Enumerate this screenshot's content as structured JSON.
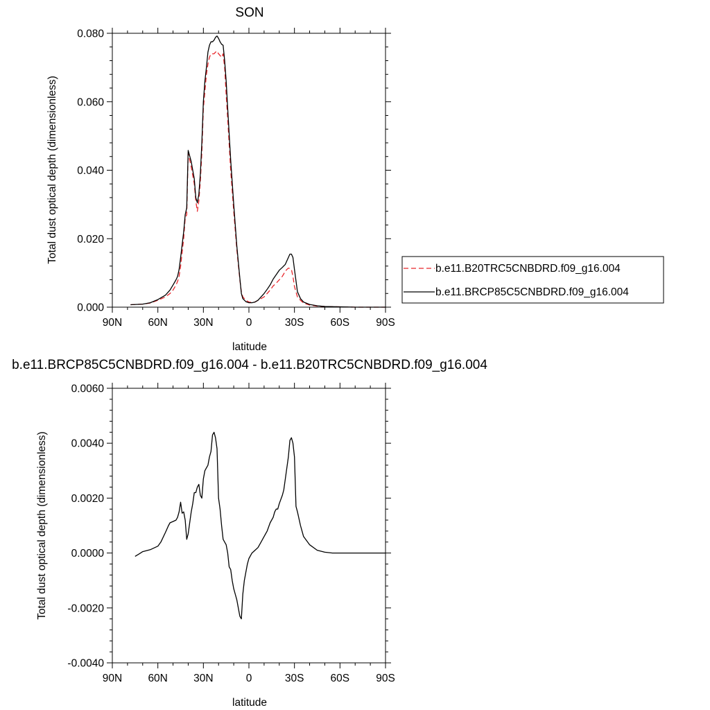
{
  "chart_data": [
    {
      "type": "line",
      "title": "SON",
      "xlabel": "latitude",
      "ylabel": "Total dust optical depth (dimensionless)",
      "xlim": [
        90,
        -90
      ],
      "ylim": [
        0,
        0.08
      ],
      "x_ticks": [
        90,
        60,
        30,
        0,
        -30,
        -60,
        -90
      ],
      "x_tick_labels": [
        "90N",
        "60N",
        "30N",
        "0",
        "30S",
        "60S",
        "90S"
      ],
      "y_ticks": [
        0,
        0.02,
        0.04,
        0.06,
        0.08
      ],
      "y_tick_labels": [
        "0.000",
        "0.020",
        "0.040",
        "0.060",
        "0.080"
      ],
      "grid": false,
      "legend_position": "outside-right",
      "series": [
        {
          "name": "b.e11.B20TRC5CNBDRD.f09_g16.004",
          "color": "#e8262b",
          "dash": "dashed",
          "x": [
            78,
            70,
            65,
            60,
            55,
            52,
            50,
            48,
            47,
            46,
            45,
            43,
            42,
            41,
            40,
            38,
            36,
            35,
            34,
            33,
            32,
            31,
            30,
            29,
            28,
            27,
            26,
            25,
            24,
            23,
            22,
            21,
            20,
            19,
            18,
            17,
            16,
            15,
            14,
            12,
            10,
            8,
            6,
            5,
            4,
            2,
            0,
            -2,
            -4,
            -6,
            -8,
            -10,
            -12,
            -14,
            -16,
            -18,
            -20,
            -22,
            -24,
            -25,
            -26,
            -27,
            -28,
            -29,
            -30,
            -32,
            -34,
            -36,
            -40,
            -45,
            -50,
            -60,
            -70,
            -80,
            -90
          ],
          "values": [
            0.0007,
            0.0009,
            0.0012,
            0.002,
            0.003,
            0.004,
            0.005,
            0.0065,
            0.0075,
            0.009,
            0.012,
            0.02,
            0.026,
            0.027,
            0.045,
            0.041,
            0.036,
            0.031,
            0.028,
            0.031,
            0.037,
            0.045,
            0.058,
            0.063,
            0.068,
            0.071,
            0.073,
            0.074,
            0.074,
            0.074,
            0.0745,
            0.0748,
            0.074,
            0.0735,
            0.073,
            0.074,
            0.07,
            0.062,
            0.055,
            0.04,
            0.028,
            0.017,
            0.008,
            0.0045,
            0.003,
            0.002,
            0.0015,
            0.0014,
            0.0015,
            0.002,
            0.0025,
            0.003,
            0.004,
            0.005,
            0.0062,
            0.007,
            0.008,
            0.009,
            0.0105,
            0.011,
            0.0114,
            0.0113,
            0.011,
            0.009,
            0.006,
            0.003,
            0.002,
            0.0012,
            0.0006,
            0.0003,
            0.0002,
            0.0001,
            0.0,
            0.0,
            0.0
          ]
        },
        {
          "name": "b.e11.BRCP85C5CNBDRD.f09_g16.004",
          "color": "#000000",
          "dash": "solid",
          "x": [
            78,
            70,
            65,
            60,
            55,
            52,
            50,
            48,
            47,
            46,
            45,
            43,
            42,
            41,
            40,
            38,
            36,
            35,
            34,
            33,
            32,
            31,
            30,
            29,
            28,
            27,
            26,
            25,
            24,
            23,
            22,
            21,
            20,
            19,
            18,
            17,
            16,
            15,
            14,
            12,
            10,
            8,
            6,
            5,
            4,
            2,
            0,
            -2,
            -4,
            -6,
            -8,
            -10,
            -12,
            -14,
            -16,
            -18,
            -20,
            -22,
            -24,
            -25,
            -26,
            -27,
            -28,
            -29,
            -30,
            -32,
            -34,
            -36,
            -40,
            -45,
            -50,
            -60,
            -70,
            -80,
            -90
          ],
          "values": [
            0.0007,
            0.0009,
            0.0013,
            0.0022,
            0.0035,
            0.005,
            0.0065,
            0.008,
            0.009,
            0.011,
            0.0145,
            0.022,
            0.027,
            0.029,
            0.0458,
            0.0425,
            0.0375,
            0.032,
            0.0305,
            0.033,
            0.039,
            0.048,
            0.06,
            0.066,
            0.07,
            0.0745,
            0.0765,
            0.0775,
            0.0775,
            0.078,
            0.0788,
            0.0792,
            0.0785,
            0.0775,
            0.0768,
            0.0765,
            0.072,
            0.066,
            0.058,
            0.043,
            0.03,
            0.018,
            0.0085,
            0.004,
            0.0025,
            0.0016,
            0.0013,
            0.0013,
            0.0015,
            0.002,
            0.003,
            0.004,
            0.0052,
            0.0065,
            0.0082,
            0.0095,
            0.0108,
            0.0116,
            0.0125,
            0.0135,
            0.0145,
            0.0155,
            0.0155,
            0.0145,
            0.011,
            0.0045,
            0.0025,
            0.0015,
            0.0008,
            0.0004,
            0.0002,
            0.0001,
            0.0,
            0.0,
            0.0
          ]
        }
      ]
    },
    {
      "type": "line",
      "title": "b.e11.BRCP85C5CNBDRD.f09_g16.004 - b.e11.B20TRC5CNBDRD.f09_g16.004",
      "xlabel": "latitude",
      "ylabel": "Total dust optical depth (dimensionless)",
      "xlim": [
        90,
        -90
      ],
      "ylim": [
        -0.004,
        0.006
      ],
      "x_ticks": [
        90,
        60,
        30,
        0,
        -30,
        -60,
        -90
      ],
      "x_tick_labels": [
        "90N",
        "60N",
        "30N",
        "0",
        "30S",
        "60S",
        "90S"
      ],
      "y_ticks": [
        -0.004,
        -0.002,
        0,
        0.002,
        0.004,
        0.006
      ],
      "y_tick_labels": [
        "-0.0040",
        "-0.0020",
        "0.0000",
        "0.0020",
        "0.0040",
        "0.0060"
      ],
      "grid": false,
      "series": [
        {
          "color": "#000000",
          "dash": "solid",
          "x": [
            75,
            72,
            70,
            65,
            60,
            58,
            55,
            53,
            52,
            50,
            48,
            47,
            46,
            45,
            44,
            43,
            42,
            41,
            40,
            39,
            38,
            37,
            36,
            35,
            34,
            33,
            32,
            31,
            30,
            29,
            28,
            27,
            26,
            25,
            24,
            23,
            22,
            21,
            20,
            19,
            18,
            17,
            16,
            15,
            14,
            13,
            12,
            11,
            10,
            9,
            8,
            7,
            6,
            5,
            4,
            3,
            2,
            1,
            0,
            -2,
            -4,
            -6,
            -8,
            -10,
            -12,
            -14,
            -16,
            -17,
            -18,
            -19,
            -20,
            -22,
            -23,
            -24,
            -25,
            -26,
            -27,
            -28,
            -29,
            -30,
            -31,
            -32,
            -34,
            -36,
            -40,
            -45,
            -50,
            -55,
            -60,
            -70,
            -80,
            -90
          ],
          "values": [
            -0.00012,
            -2e-05,
            5e-05,
            0.00012,
            0.00025,
            0.0004,
            0.00075,
            0.001,
            0.0011,
            0.00115,
            0.0012,
            0.0013,
            0.0015,
            0.00185,
            0.00145,
            0.0015,
            0.0012,
            0.0005,
            0.0007,
            0.0011,
            0.0015,
            0.0018,
            0.0022,
            0.0022,
            0.0024,
            0.0025,
            0.0021,
            0.002,
            0.0027,
            0.003,
            0.0031,
            0.0032,
            0.0035,
            0.0037,
            0.0043,
            0.0044,
            0.0042,
            0.0038,
            0.002,
            0.0016,
            0.001,
            0.0005,
            0.0004,
            0.0003,
            0.0,
            -0.0005,
            -0.0006,
            -0.001,
            -0.0013,
            -0.0015,
            -0.0017,
            -0.002,
            -0.0023,
            -0.0024,
            -0.0015,
            -0.001,
            -0.0007,
            -0.0004,
            -0.0002,
            0.0,
            0.0001,
            0.0002,
            0.0004,
            0.0006,
            0.0008,
            0.0011,
            0.0013,
            0.0015,
            0.0016,
            0.0016,
            0.0018,
            0.0021,
            0.0023,
            0.0027,
            0.0031,
            0.0035,
            0.0041,
            0.0042,
            0.004,
            0.0035,
            0.0017,
            0.0015,
            0.001,
            0.0006,
            0.0003,
            0.0001,
            3e-05,
            0.0,
            0.0,
            0.0,
            0.0,
            0.0
          ]
        }
      ]
    }
  ]
}
